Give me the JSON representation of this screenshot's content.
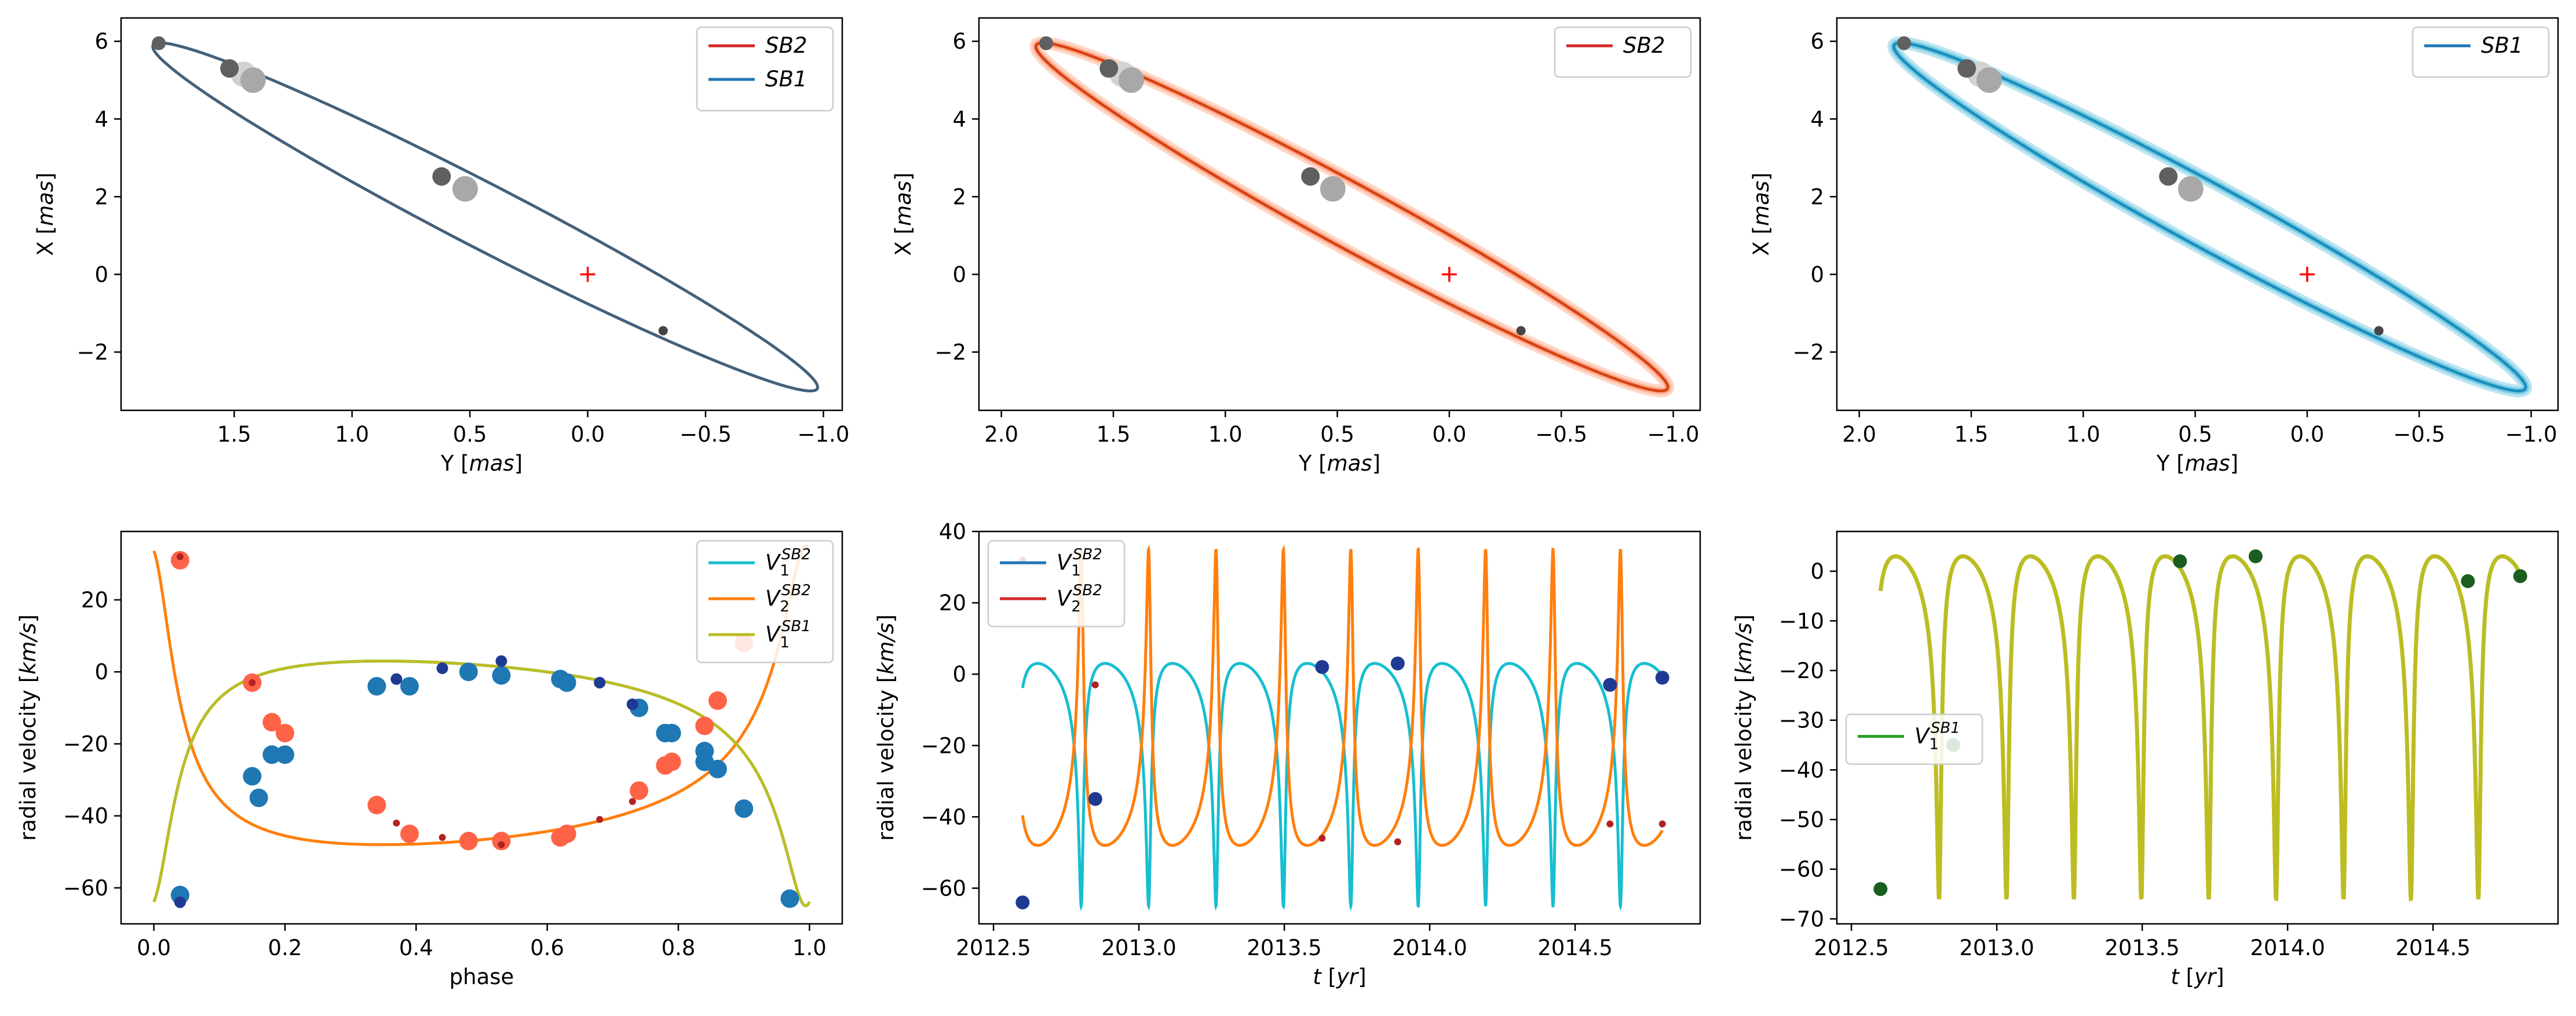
{
  "colors": {
    "sb2": "#d62728",
    "sb1": "#1f77b4",
    "v1": "#17becf",
    "v2": "#ff7f0e",
    "v1sb1": "#bcbd22",
    "v1_rv_legend": "#1f77b4",
    "v2_rv_legend": "#d62728",
    "v1sb1_rv_legend": "#2ca02c",
    "orbit_overlap": "#44617a",
    "sb2_ensemble": "#ff8a5b",
    "sb1_ensemble": "#3bb3d6",
    "marker_dark": "#606060",
    "marker_light": "#a8a8a8",
    "marker_lighter": "#d2d2d2",
    "marker_small": "#444444",
    "center_cross": "#ff0000",
    "rv_points_sb1_orbit": "#1f77b4",
    "rv_points_sb2_orbit": "#ff6347",
    "rv_small_dark": "#1f3a93",
    "rv_small_red": "#b22222",
    "sb1_only_points": "#1b5e20"
  },
  "chart_data": [
    {
      "type": "scatter",
      "panel": "top-left",
      "xlabel": "Y [mas]",
      "ylabel": "X [mas]",
      "xlim": [
        1.98,
        -1.08
      ],
      "ylim": [
        -3.5,
        6.6
      ],
      "xticks": [
        1.5,
        1.0,
        0.5,
        0.0,
        -0.5,
        -1.0
      ],
      "xtick_labels": [
        "1.5",
        "1.0",
        "0.5",
        "0.0",
        "−0.5",
        "−1.0"
      ],
      "yticks": [
        -2,
        0,
        2,
        4,
        6
      ],
      "ytick_labels": [
        "−2",
        "0",
        "2",
        "4",
        "6"
      ],
      "ellipse": {
        "periastron": [
          -0.95,
          -3.0
        ],
        "apoastron": [
          1.82,
          5.96
        ],
        "semi_minor": 0.28
      },
      "series": [
        {
          "name": "SB2",
          "color": "sb2"
        },
        {
          "name": "SB1",
          "color": "sb1"
        }
      ],
      "legend": "top-right",
      "center": [
        0.0,
        0.0
      ],
      "markers": [
        {
          "x": 1.82,
          "y": 5.95,
          "size": "small",
          "shade": "dark"
        },
        {
          "x": 1.46,
          "y": 5.15,
          "size": "large",
          "shade": "lighter"
        },
        {
          "x": 1.52,
          "y": 5.3,
          "size": "medium",
          "shade": "dark"
        },
        {
          "x": 1.42,
          "y": 5.0,
          "size": "large",
          "shade": "light"
        },
        {
          "x": 0.62,
          "y": 2.52,
          "size": "medium",
          "shade": "dark"
        },
        {
          "x": 0.52,
          "y": 2.2,
          "size": "large",
          "shade": "light"
        },
        {
          "x": -0.32,
          "y": -1.45,
          "size": "tiny",
          "shade": "small"
        }
      ]
    },
    {
      "type": "scatter",
      "panel": "top-middle",
      "xlabel": "Y [mas]",
      "ylabel": "X [mas]",
      "xlim": [
        2.1,
        -1.12
      ],
      "ylim": [
        -3.5,
        6.6
      ],
      "xticks": [
        2.0,
        1.5,
        1.0,
        0.5,
        0.0,
        -0.5,
        -1.0
      ],
      "xtick_labels": [
        "2.0",
        "1.5",
        "1.0",
        "0.5",
        "0.0",
        "−0.5",
        "−1.0"
      ],
      "yticks": [
        -2,
        0,
        2,
        4,
        6
      ],
      "ytick_labels": [
        "−2",
        "0",
        "2",
        "4",
        "6"
      ],
      "ellipse": {
        "periastron": [
          -0.95,
          -3.0
        ],
        "apoastron": [
          1.82,
          5.96
        ],
        "semi_minor": 0.28
      },
      "series": [
        {
          "name": "SB2",
          "color": "sb2"
        }
      ],
      "legend": "top-right",
      "center": [
        0.0,
        0.0
      ],
      "markers": [
        {
          "x": 1.8,
          "y": 5.95,
          "size": "small",
          "shade": "dark"
        },
        {
          "x": 1.46,
          "y": 5.15,
          "size": "large",
          "shade": "lighter"
        },
        {
          "x": 1.52,
          "y": 5.3,
          "size": "medium",
          "shade": "dark"
        },
        {
          "x": 1.42,
          "y": 5.0,
          "size": "large",
          "shade": "light"
        },
        {
          "x": 0.62,
          "y": 2.52,
          "size": "medium",
          "shade": "dark"
        },
        {
          "x": 0.52,
          "y": 2.2,
          "size": "large",
          "shade": "light"
        },
        {
          "x": -0.32,
          "y": -1.45,
          "size": "tiny",
          "shade": "small"
        }
      ]
    },
    {
      "type": "scatter",
      "panel": "top-right",
      "xlabel": "Y [mas]",
      "ylabel": "X [mas]",
      "xlim": [
        2.1,
        -1.12
      ],
      "ylim": [
        -3.5,
        6.6
      ],
      "xticks": [
        2.0,
        1.5,
        1.0,
        0.5,
        0.0,
        -0.5,
        -1.0
      ],
      "xtick_labels": [
        "2.0",
        "1.5",
        "1.0",
        "0.5",
        "0.0",
        "−0.5",
        "−1.0"
      ],
      "yticks": [
        -2,
        0,
        2,
        4,
        6
      ],
      "ytick_labels": [
        "−2",
        "0",
        "2",
        "4",
        "6"
      ],
      "ellipse": {
        "periastron": [
          -0.95,
          -3.0
        ],
        "apoastron": [
          1.82,
          5.96
        ],
        "semi_minor": 0.28
      },
      "series": [
        {
          "name": "SB1",
          "color": "sb1"
        }
      ],
      "legend": "top-right",
      "center": [
        0.0,
        0.0
      ],
      "markers": [
        {
          "x": 1.8,
          "y": 5.95,
          "size": "small",
          "shade": "dark"
        },
        {
          "x": 1.46,
          "y": 5.15,
          "size": "large",
          "shade": "lighter"
        },
        {
          "x": 1.52,
          "y": 5.3,
          "size": "medium",
          "shade": "dark"
        },
        {
          "x": 1.42,
          "y": 5.0,
          "size": "large",
          "shade": "light"
        },
        {
          "x": 0.62,
          "y": 2.52,
          "size": "medium",
          "shade": "dark"
        },
        {
          "x": 0.52,
          "y": 2.2,
          "size": "large",
          "shade": "light"
        },
        {
          "x": -0.32,
          "y": -1.45,
          "size": "tiny",
          "shade": "small"
        }
      ]
    },
    {
      "type": "line",
      "panel": "bottom-left",
      "xlabel": "phase",
      "ylabel": "radial velocity [km/s]",
      "xlim": [
        -0.05,
        1.05
      ],
      "ylim": [
        -70,
        39
      ],
      "xticks": [
        0.0,
        0.2,
        0.4,
        0.6,
        0.8,
        1.0
      ],
      "xtick_labels": [
        "0.0",
        "0.2",
        "0.4",
        "0.6",
        "0.8",
        "1.0"
      ],
      "yticks": [
        -60,
        -40,
        -20,
        0,
        20
      ],
      "ytick_labels": [
        "−60",
        "−40",
        "−20",
        "0",
        "20"
      ],
      "legend": "top-right",
      "series": [
        {
          "name": "V1^SB2",
          "color": "v1",
          "curve": "primary"
        },
        {
          "name": "V2^SB2",
          "color": "v2",
          "curve": "secondary"
        },
        {
          "name": "V1^SB1",
          "color": "v1sb1",
          "curve": "primary"
        }
      ],
      "points_v1_large": [
        [
          0.04,
          -62
        ],
        [
          0.15,
          -29
        ],
        [
          0.16,
          -35
        ],
        [
          0.18,
          -23
        ],
        [
          0.2,
          -23
        ],
        [
          0.34,
          -4
        ],
        [
          0.39,
          -4
        ],
        [
          0.48,
          0
        ],
        [
          0.53,
          -1
        ],
        [
          0.62,
          -2
        ],
        [
          0.63,
          -3
        ],
        [
          0.74,
          -10
        ],
        [
          0.78,
          -17
        ],
        [
          0.79,
          -17
        ],
        [
          0.84,
          -22
        ],
        [
          0.84,
          -25
        ],
        [
          0.86,
          -27
        ],
        [
          0.9,
          -38
        ],
        [
          0.97,
          -63
        ]
      ],
      "points_v1_small": [
        [
          0.04,
          -64
        ],
        [
          0.37,
          -2
        ],
        [
          0.44,
          1
        ],
        [
          0.53,
          3
        ],
        [
          0.68,
          -3
        ],
        [
          0.73,
          -9
        ]
      ],
      "points_v2_large": [
        [
          0.04,
          31
        ],
        [
          0.15,
          -3
        ],
        [
          0.18,
          -14
        ],
        [
          0.2,
          -17
        ],
        [
          0.34,
          -37
        ],
        [
          0.39,
          -45
        ],
        [
          0.48,
          -47
        ],
        [
          0.53,
          -47
        ],
        [
          0.62,
          -46
        ],
        [
          0.63,
          -45
        ],
        [
          0.74,
          -33
        ],
        [
          0.78,
          -26
        ],
        [
          0.79,
          -25
        ],
        [
          0.84,
          -15
        ],
        [
          0.86,
          -8
        ],
        [
          0.9,
          8
        ]
      ],
      "points_v2_small": [
        [
          0.04,
          32
        ],
        [
          0.15,
          -3
        ],
        [
          0.37,
          -42
        ],
        [
          0.44,
          -46
        ],
        [
          0.53,
          -48
        ],
        [
          0.68,
          -41
        ],
        [
          0.73,
          -36
        ]
      ]
    },
    {
      "type": "line",
      "panel": "bottom-middle",
      "xlabel": "t [yr]",
      "ylabel": "radial velocity [km/s]",
      "xlim": [
        2012.45,
        2014.93
      ],
      "ylim": [
        -70,
        40
      ],
      "xticks": [
        2012.5,
        2013.0,
        2013.5,
        2014.0,
        2014.5
      ],
      "xtick_labels": [
        "2012.5",
        "2013.0",
        "2013.5",
        "2014.0",
        "2014.5"
      ],
      "yticks": [
        -60,
        -40,
        -20,
        0,
        20,
        40
      ],
      "ytick_labels": [
        "−60",
        "−40",
        "−20",
        "0",
        "20",
        "40"
      ],
      "legend": "top-left",
      "t_start": 2012.6,
      "t_end": 2014.8,
      "period_yr": 0.2318,
      "t0": 2012.571,
      "series": [
        {
          "name": "V1^SB2",
          "color": "v1",
          "legend_color": "v1_rv_legend",
          "curve": "primary"
        },
        {
          "name": "V2^SB2",
          "color": "v2",
          "legend_color": "v2_rv_legend",
          "curve": "secondary"
        }
      ],
      "points_v1": [
        [
          2012.6,
          -64
        ],
        [
          2012.85,
          -35
        ],
        [
          2013.63,
          2
        ],
        [
          2013.89,
          3
        ],
        [
          2014.62,
          -3
        ],
        [
          2014.8,
          -1
        ]
      ],
      "points_v2": [
        [
          2012.6,
          32
        ],
        [
          2012.85,
          -3
        ],
        [
          2013.63,
          -46
        ],
        [
          2013.89,
          -47
        ],
        [
          2014.62,
          -42
        ],
        [
          2014.8,
          -42
        ]
      ]
    },
    {
      "type": "line",
      "panel": "bottom-right",
      "xlabel": "t [yr]",
      "ylabel": "radial velocity [km/s]",
      "xlim": [
        2012.45,
        2014.93
      ],
      "ylim": [
        -71,
        8
      ],
      "xticks": [
        2012.5,
        2013.0,
        2013.5,
        2014.0,
        2014.5
      ],
      "xtick_labels": [
        "2012.5",
        "2013.0",
        "2013.5",
        "2014.0",
        "2014.5"
      ],
      "yticks": [
        -70,
        -60,
        -50,
        -40,
        -30,
        -20,
        -10,
        0
      ],
      "ytick_labels": [
        "−70",
        "−60",
        "−50",
        "−40",
        "−30",
        "−20",
        "−10",
        "0"
      ],
      "legend": "center-left",
      "t_start": 2012.6,
      "t_end": 2014.8,
      "period_yr": 0.2318,
      "t0": 2012.571,
      "series": [
        {
          "name": "V1^SB1",
          "color": "v1sb1",
          "legend_color": "v1sb1_rv_legend",
          "curve": "sb1"
        }
      ],
      "points_v1": [
        [
          2012.6,
          -64
        ],
        [
          2012.85,
          -35
        ],
        [
          2013.63,
          2
        ],
        [
          2013.89,
          3
        ],
        [
          2014.62,
          -2
        ],
        [
          2014.8,
          -1
        ]
      ]
    }
  ]
}
